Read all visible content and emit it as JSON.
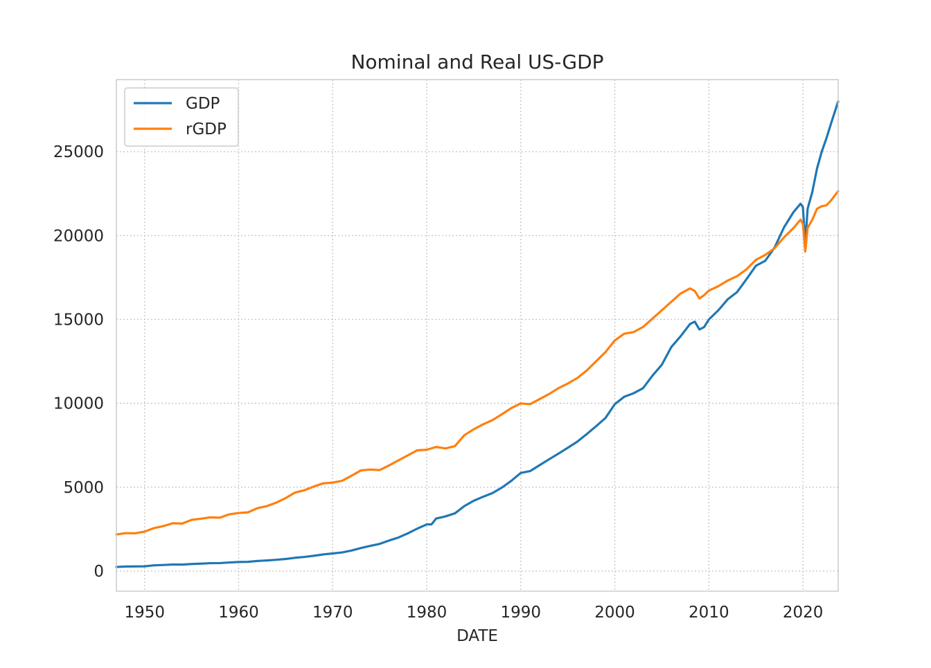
{
  "chart_data": {
    "type": "line",
    "title": "Nominal and Real US-GDP",
    "xlabel": "DATE",
    "ylabel": "",
    "xlim": [
      1947,
      2023.75
    ],
    "ylim": [
      -1200,
      29300
    ],
    "grid": true,
    "legend": "upper-left",
    "x_ticks": [
      1950,
      1960,
      1970,
      1980,
      1990,
      2000,
      2010,
      2020
    ],
    "y_ticks": [
      0,
      5000,
      10000,
      15000,
      20000,
      25000
    ],
    "series": [
      {
        "name": "GDP",
        "color": "#1f77b4",
        "points": [
          [
            1947,
            243
          ],
          [
            1948,
            270
          ],
          [
            1949,
            275
          ],
          [
            1950,
            280
          ],
          [
            1951,
            340
          ],
          [
            1952,
            360
          ],
          [
            1953,
            390
          ],
          [
            1954,
            385
          ],
          [
            1955,
            420
          ],
          [
            1956,
            440
          ],
          [
            1957,
            470
          ],
          [
            1958,
            475
          ],
          [
            1959,
            510
          ],
          [
            1960,
            540
          ],
          [
            1961,
            550
          ],
          [
            1962,
            600
          ],
          [
            1963,
            630
          ],
          [
            1964,
            670
          ],
          [
            1965,
            720
          ],
          [
            1966,
            790
          ],
          [
            1967,
            840
          ],
          [
            1968,
            910
          ],
          [
            1969,
            990
          ],
          [
            1970,
            1050
          ],
          [
            1971,
            1110
          ],
          [
            1972,
            1220
          ],
          [
            1973,
            1370
          ],
          [
            1974,
            1500
          ],
          [
            1975,
            1620
          ],
          [
            1976,
            1820
          ],
          [
            1977,
            2000
          ],
          [
            1978,
            2250
          ],
          [
            1979,
            2530
          ],
          [
            1980,
            2780
          ],
          [
            1980.5,
            2780
          ],
          [
            1981,
            3130
          ],
          [
            1982,
            3260
          ],
          [
            1983,
            3440
          ],
          [
            1984,
            3870
          ],
          [
            1985,
            4190
          ],
          [
            1986,
            4430
          ],
          [
            1987,
            4650
          ],
          [
            1988,
            4980
          ],
          [
            1989,
            5380
          ],
          [
            1990,
            5850
          ],
          [
            1991,
            5960
          ],
          [
            1992,
            6310
          ],
          [
            1993,
            6660
          ],
          [
            1994,
            7000
          ],
          [
            1995,
            7350
          ],
          [
            1996,
            7710
          ],
          [
            1997,
            8160
          ],
          [
            1998,
            8630
          ],
          [
            1999,
            9120
          ],
          [
            2000,
            9950
          ],
          [
            2001,
            10390
          ],
          [
            2002,
            10600
          ],
          [
            2003,
            10900
          ],
          [
            2004,
            11650
          ],
          [
            2005,
            12300
          ],
          [
            2006,
            13350
          ],
          [
            2007,
            14000
          ],
          [
            2008,
            14730
          ],
          [
            2008.5,
            14870
          ],
          [
            2009,
            14400
          ],
          [
            2009.5,
            14550
          ],
          [
            2010,
            15000
          ],
          [
            2011,
            15540
          ],
          [
            2012,
            16200
          ],
          [
            2013,
            16630
          ],
          [
            2014,
            17400
          ],
          [
            2015,
            18200
          ],
          [
            2016,
            18500
          ],
          [
            2017,
            19300
          ],
          [
            2018,
            20500
          ],
          [
            2019,
            21400
          ],
          [
            2019.75,
            21900
          ],
          [
            2020,
            21700
          ],
          [
            2020.25,
            19500
          ],
          [
            2020.5,
            21600
          ],
          [
            2021,
            22600
          ],
          [
            2021.5,
            24000
          ],
          [
            2022,
            25000
          ],
          [
            2022.5,
            25800
          ],
          [
            2023,
            26700
          ],
          [
            2023.75,
            28000
          ]
        ]
      },
      {
        "name": "rGDP",
        "color": "#ff7f0e",
        "points": [
          [
            1947,
            2180
          ],
          [
            1948,
            2260
          ],
          [
            1949,
            2250
          ],
          [
            1950,
            2350
          ],
          [
            1951,
            2560
          ],
          [
            1952,
            2680
          ],
          [
            1953,
            2850
          ],
          [
            1954,
            2830
          ],
          [
            1955,
            3050
          ],
          [
            1956,
            3120
          ],
          [
            1957,
            3200
          ],
          [
            1958,
            3180
          ],
          [
            1959,
            3380
          ],
          [
            1960,
            3460
          ],
          [
            1961,
            3500
          ],
          [
            1962,
            3750
          ],
          [
            1963,
            3870
          ],
          [
            1964,
            4080
          ],
          [
            1965,
            4350
          ],
          [
            1966,
            4680
          ],
          [
            1967,
            4820
          ],
          [
            1968,
            5040
          ],
          [
            1969,
            5230
          ],
          [
            1970,
            5270
          ],
          [
            1971,
            5380
          ],
          [
            1972,
            5680
          ],
          [
            1973,
            6000
          ],
          [
            1974,
            6050
          ],
          [
            1975,
            6020
          ],
          [
            1976,
            6300
          ],
          [
            1977,
            6600
          ],
          [
            1978,
            6900
          ],
          [
            1979,
            7200
          ],
          [
            1980,
            7230
          ],
          [
            1981,
            7400
          ],
          [
            1982,
            7310
          ],
          [
            1983,
            7450
          ],
          [
            1984,
            8100
          ],
          [
            1985,
            8450
          ],
          [
            1986,
            8750
          ],
          [
            1987,
            9000
          ],
          [
            1988,
            9350
          ],
          [
            1989,
            9720
          ],
          [
            1990,
            9990
          ],
          [
            1991,
            9950
          ],
          [
            1992,
            10250
          ],
          [
            1993,
            10550
          ],
          [
            1994,
            10900
          ],
          [
            1995,
            11180
          ],
          [
            1996,
            11500
          ],
          [
            1997,
            11950
          ],
          [
            1998,
            12500
          ],
          [
            1999,
            13050
          ],
          [
            2000,
            13750
          ],
          [
            2001,
            14150
          ],
          [
            2002,
            14250
          ],
          [
            2003,
            14550
          ],
          [
            2004,
            15050
          ],
          [
            2005,
            15550
          ],
          [
            2006,
            16050
          ],
          [
            2007,
            16550
          ],
          [
            2008,
            16850
          ],
          [
            2008.5,
            16700
          ],
          [
            2009,
            16250
          ],
          [
            2009.5,
            16450
          ],
          [
            2010,
            16720
          ],
          [
            2011,
            16980
          ],
          [
            2012,
            17320
          ],
          [
            2013,
            17580
          ],
          [
            2014,
            17990
          ],
          [
            2015,
            18550
          ],
          [
            2016,
            18850
          ],
          [
            2017,
            19250
          ],
          [
            2018,
            19900
          ],
          [
            2019,
            20450
          ],
          [
            2019.75,
            20950
          ],
          [
            2020,
            20700
          ],
          [
            2020.25,
            19050
          ],
          [
            2020.5,
            20450
          ],
          [
            2021,
            20950
          ],
          [
            2021.5,
            21600
          ],
          [
            2022,
            21750
          ],
          [
            2022.5,
            21800
          ],
          [
            2023,
            22100
          ],
          [
            2023.75,
            22650
          ]
        ]
      }
    ]
  }
}
